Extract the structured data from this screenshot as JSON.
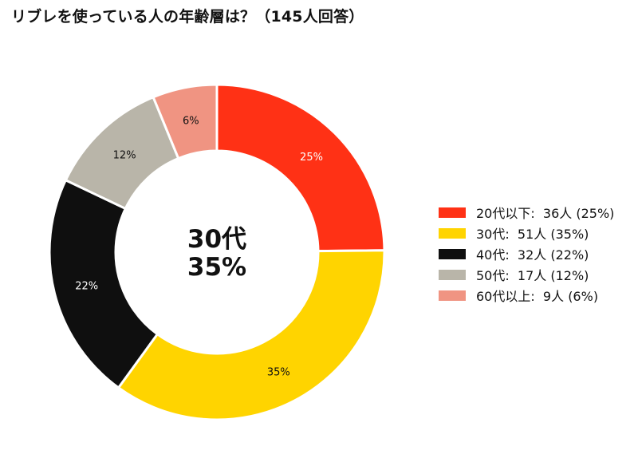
{
  "chart_data": {
    "type": "pie",
    "variant": "donut",
    "title": "リブレを使っている人の年齢層は？（145人回答）",
    "total_respondents": 145,
    "categories": [
      "20代以下",
      "30代",
      "40代",
      "50代",
      "60代以上"
    ],
    "values": [
      36,
      51,
      32,
      17,
      9
    ],
    "percent_labels": [
      "25%",
      "35%",
      "22%",
      "12%",
      "6%"
    ],
    "colors": [
      "#FF3115",
      "#FFD400",
      "#0F0F0F",
      "#B9B5A9",
      "#F09482"
    ],
    "label_colors": [
      "#ffffff",
      "#111111",
      "#ffffff",
      "#111111",
      "#111111"
    ],
    "legend_entries": [
      "20代以下:  36人 (25%)",
      "30代:  51人 (35%)",
      "40代:  32人 (22%)",
      "50代:  17人 (12%)",
      "60代以上:  9人 (6%)"
    ],
    "legend_position": "right",
    "center_label": {
      "line1": "30代",
      "line2": "35%"
    },
    "start_angle_deg": 0,
    "direction": "clockwise"
  }
}
